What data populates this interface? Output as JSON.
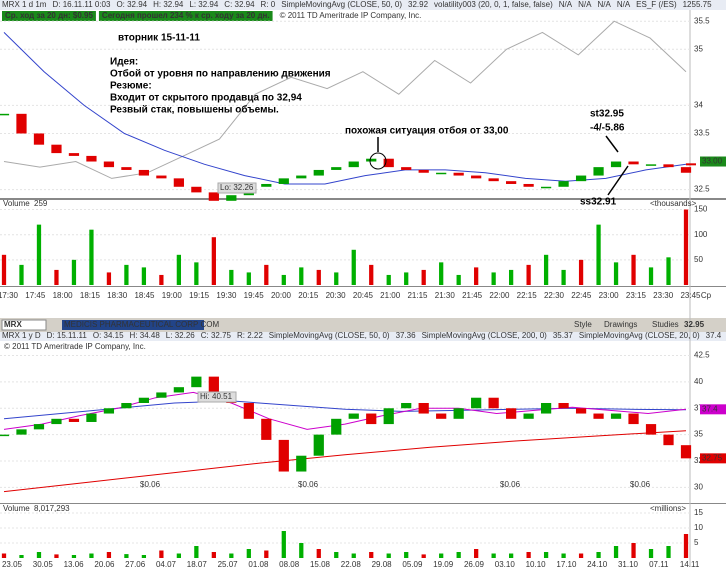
{
  "top_chart": {
    "header": [
      "MRX 1 d 1m",
      "D: 16.11.11 0:03",
      "O: 32.94",
      "H: 32.94",
      "L: 32.94",
      "C: 32.94",
      "R: 0",
      "SimpleMovingAvg (CLOSE, 50, 0)",
      "32.92",
      "volatility003 (20, 0, 1, false, false)",
      "N/A",
      "N/A",
      "N/A",
      "N/A",
      "ES_F (/ES)",
      "1255.75"
    ],
    "badges": [
      "Ср. ход за 20 дн: $0.95",
      "Сегодня прошел 234 % к ср. ходу за 20 дн."
    ],
    "copyright": "© 2011 TD Ameritrade IP Company, Inc.",
    "annotations": {
      "date": "вторник 15-11-11",
      "idea_title": "Идея:",
      "idea": "Отбой от уровня по направлению движения",
      "summary_title": "Резюме:",
      "summary_1": "Входит от скрытого продавца по 32,94",
      "summary_2": "Резвый стак, повышены объемы.",
      "similar": "похожая ситуация отбоя от 33,00",
      "stop": "st32.95",
      "result": "-4/-5.86",
      "short": "ss32.91",
      "low": "Lo: 32.26"
    },
    "price": {
      "ylim": [
        32.35,
        35.7
      ],
      "yticks": [
        32.5,
        33.5,
        34,
        35,
        35.5
      ],
      "last_price": 32.95,
      "level": {
        "value": 33,
        "label": "33.00"
      },
      "closes": [
        33.85,
        33.5,
        33.3,
        33.15,
        33.1,
        33.0,
        32.9,
        32.85,
        32.75,
        32.7,
        32.55,
        32.45,
        32.3,
        32.4,
        32.55,
        32.6,
        32.7,
        32.75,
        32.85,
        32.9,
        33.0,
        33.05,
        32.9,
        32.85,
        32.8,
        32.8,
        32.75,
        32.7,
        32.65,
        32.6,
        32.55,
        32.55,
        32.65,
        32.75,
        32.9,
        33.0,
        32.95,
        32.95,
        32.9,
        32.8
      ],
      "sma": [
        35.3,
        34.6,
        34.0,
        33.5,
        33.2,
        32.95,
        32.75,
        32.6,
        32.6,
        32.75,
        32.85,
        32.85,
        32.8,
        32.7,
        32.65,
        32.7,
        32.85,
        32.95
      ],
      "es_line": [
        33.0,
        32.9,
        33.0,
        32.7,
        32.8,
        33.1,
        33.4,
        34.2,
        34.5,
        34.3,
        34.6,
        34.2,
        34.8,
        34.4,
        35.0,
        35.3,
        34.9,
        35.5,
        35.2,
        34.6
      ]
    },
    "volume": {
      "label": "Volume",
      "value": "259",
      "unit": "<thousands>",
      "ylim": [
        0,
        165
      ],
      "yticks": [
        50,
        100,
        150
      ],
      "values": [
        60,
        40,
        120,
        30,
        50,
        110,
        25,
        40,
        35,
        20,
        60,
        45,
        95,
        30,
        25,
        40,
        20,
        35,
        30,
        25,
        70,
        40,
        20,
        25,
        30,
        45,
        20,
        35,
        25,
        30,
        40,
        60,
        30,
        50,
        120,
        45,
        60,
        35,
        55,
        150
      ]
    },
    "times": [
      "17:30",
      "17:45",
      "18:00",
      "18:15",
      "18:30",
      "18:45",
      "19:00",
      "19:15",
      "19:30",
      "19:45",
      "20:00",
      "20:15",
      "20:30",
      "20:45",
      "21:00",
      "21:15",
      "21:30",
      "21:45",
      "22:00",
      "22:15",
      "22:30",
      "22:45",
      "23:00",
      "23:15",
      "23:30",
      "23:45",
      "Cp"
    ]
  },
  "bottom_chart": {
    "toolbar": {
      "symbol": "MRX",
      "company": "MEDICIS PHARMACEUTICAL CORP COM",
      "style": "Style",
      "drawings": "Drawings",
      "studies": "Studies",
      "last": "32.95"
    },
    "header": [
      "MRX 1 y D",
      "D: 15.11.11",
      "O: 34.15",
      "H: 34.48",
      "L: 32.26",
      "C: 32.75",
      "R: 2.22",
      "SimpleMovingAvg (CLOSE, 50, 0)",
      "37.36",
      "SimpleMovingAvg (CLOSE, 200, 0)",
      "35.37",
      "SimpleMovingAvg (CLOSE, 20, 0)",
      "37.4"
    ],
    "copyright": "© 2011 TD Ameritrade IP Company, Inc.",
    "high": "Hi: 40.51",
    "dividends": [
      "$0.06",
      "$0.06",
      "$0.06",
      "$0.06"
    ],
    "price": {
      "ylim": [
        28.8,
        43.5
      ],
      "yticks": [
        30,
        32.5,
        35,
        37.5,
        40,
        42.5
      ],
      "sma20_last": 37.4,
      "last": 32.75,
      "closes": [
        35.0,
        35.5,
        36.0,
        36.5,
        36.2,
        37.0,
        37.5,
        38.0,
        38.5,
        39.0,
        39.5,
        40.5,
        39.0,
        38.0,
        36.5,
        34.5,
        31.5,
        33.0,
        35.0,
        36.5,
        37.0,
        36.0,
        37.5,
        38.0,
        37.0,
        36.5,
        37.5,
        38.5,
        37.5,
        36.5,
        37.0,
        38.0,
        37.5,
        37.0,
        36.5,
        37.0,
        36.0,
        35.0,
        34.0,
        32.75
      ],
      "sma20": [
        35.5,
        36.0,
        36.8,
        37.5,
        38.5,
        39.0,
        38.0,
        36.5,
        35.5,
        36.0,
        36.8,
        37.5,
        37.5,
        37.0,
        37.3,
        37.6,
        37.3,
        37.0,
        37.4
      ],
      "sma50": [
        36.5,
        37.0,
        37.5,
        38.0,
        38.2,
        37.8,
        37.4,
        37.2,
        37.3,
        37.4,
        37.5,
        37.4,
        37.36
      ],
      "sma200": [
        29.6,
        30.5,
        31.4,
        32.3,
        33.1,
        33.8,
        34.4,
        34.9,
        35.37
      ]
    },
    "volume": {
      "label": "Volume",
      "value": "8,017,293",
      "unit": "<millions>",
      "ylim": [
        0,
        17
      ],
      "yticks": [
        5,
        10,
        15
      ],
      "values": [
        1.5,
        1,
        2,
        1.2,
        1,
        1.5,
        2,
        1.3,
        1,
        2.5,
        1.5,
        4,
        2,
        1.5,
        3,
        2.5,
        9,
        5,
        3,
        2,
        1.5,
        2,
        1.5,
        2,
        1.2,
        1.5,
        2,
        3,
        1.5,
        1.5,
        2,
        2,
        1.5,
        1.5,
        2,
        4,
        5,
        3,
        4,
        8
      ]
    },
    "dates": [
      "23.05",
      "30.05",
      "13.06",
      "20.06",
      "27.06",
      "04.07",
      "18.07",
      "25.07",
      "01.08",
      "08.08",
      "15.08",
      "22.08",
      "29.08",
      "05.09",
      "19.09",
      "26.09",
      "03.10",
      "10.10",
      "17.10",
      "24.10",
      "31.10",
      "07.11",
      "14.11"
    ]
  }
}
